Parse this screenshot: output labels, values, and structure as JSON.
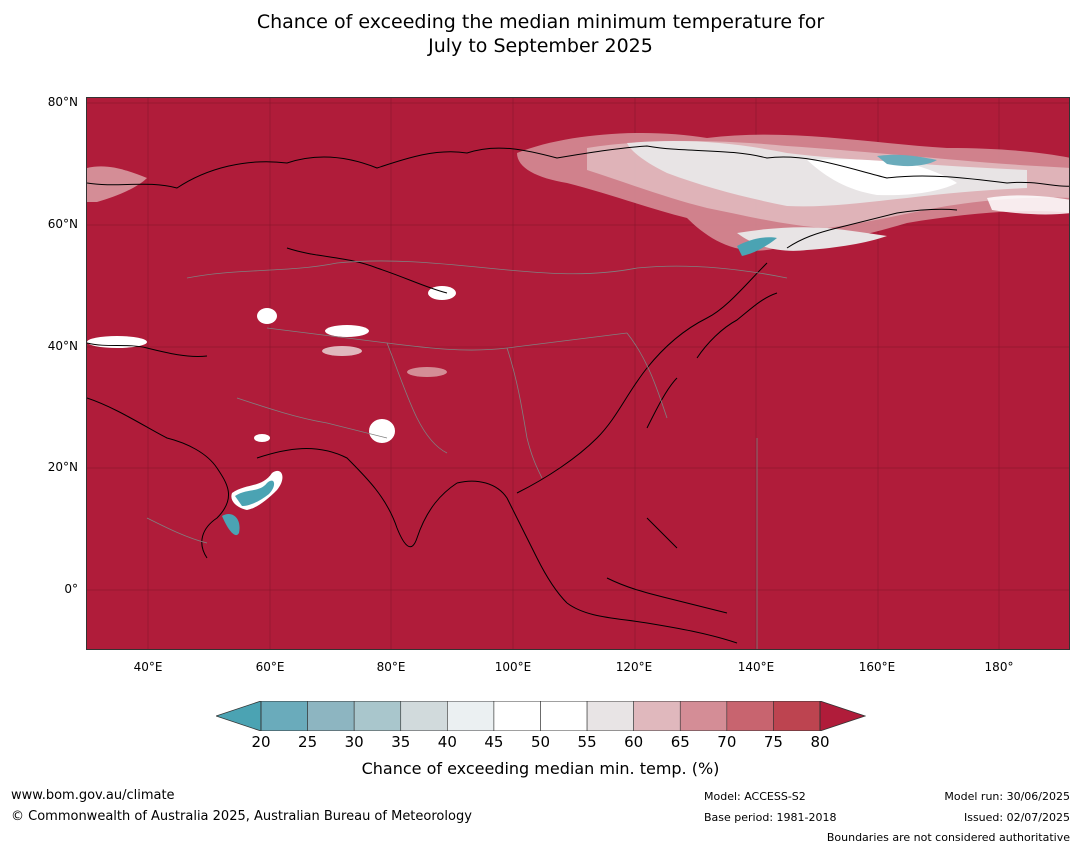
{
  "title": {
    "line1": "Chance of exceeding the median minimum temperature for",
    "line2": "July to September 2025"
  },
  "map": {
    "lat_labels": [
      "80°N",
      "60°N",
      "40°N",
      "20°N",
      "0°"
    ],
    "lon_labels": [
      "40°E",
      "60°E",
      "80°E",
      "100°E",
      "120°E",
      "140°E",
      "160°E",
      "180°"
    ],
    "extent": {
      "lon": [
        30,
        192
      ],
      "lat": [
        -10,
        80
      ]
    },
    "dominant_color": "#b01c3a",
    "land_outline_color": "#000000",
    "boundary_color": "#808080"
  },
  "colorbar": {
    "ticks": [
      "20",
      "25",
      "30",
      "35",
      "40",
      "45",
      "50",
      "55",
      "60",
      "65",
      "70",
      "75",
      "80"
    ],
    "colors": [
      "#4ba3b3",
      "#6aabbb",
      "#8db5c1",
      "#a9c6cc",
      "#d1dadc",
      "#ebf0f2",
      "#ffffff",
      "#ffffff",
      "#e8e4e5",
      "#e0b8bd",
      "#d48d96",
      "#c8646f",
      "#bd4450",
      "#b01c3a"
    ],
    "label": "Chance of exceeding median min. temp. (%)"
  },
  "footer": {
    "website": "www.bom.gov.au/climate",
    "copyright": "© Commonwealth of Australia 2025, Australian Bureau of Meteorology",
    "model": "Model: ACCESS-S2",
    "base_period": "Base period: 1981-2018",
    "model_run": "Model run: 30/06/2025",
    "issued": "Issued: 02/07/2025",
    "disclaimer": "Boundaries are not considered authoritative"
  }
}
